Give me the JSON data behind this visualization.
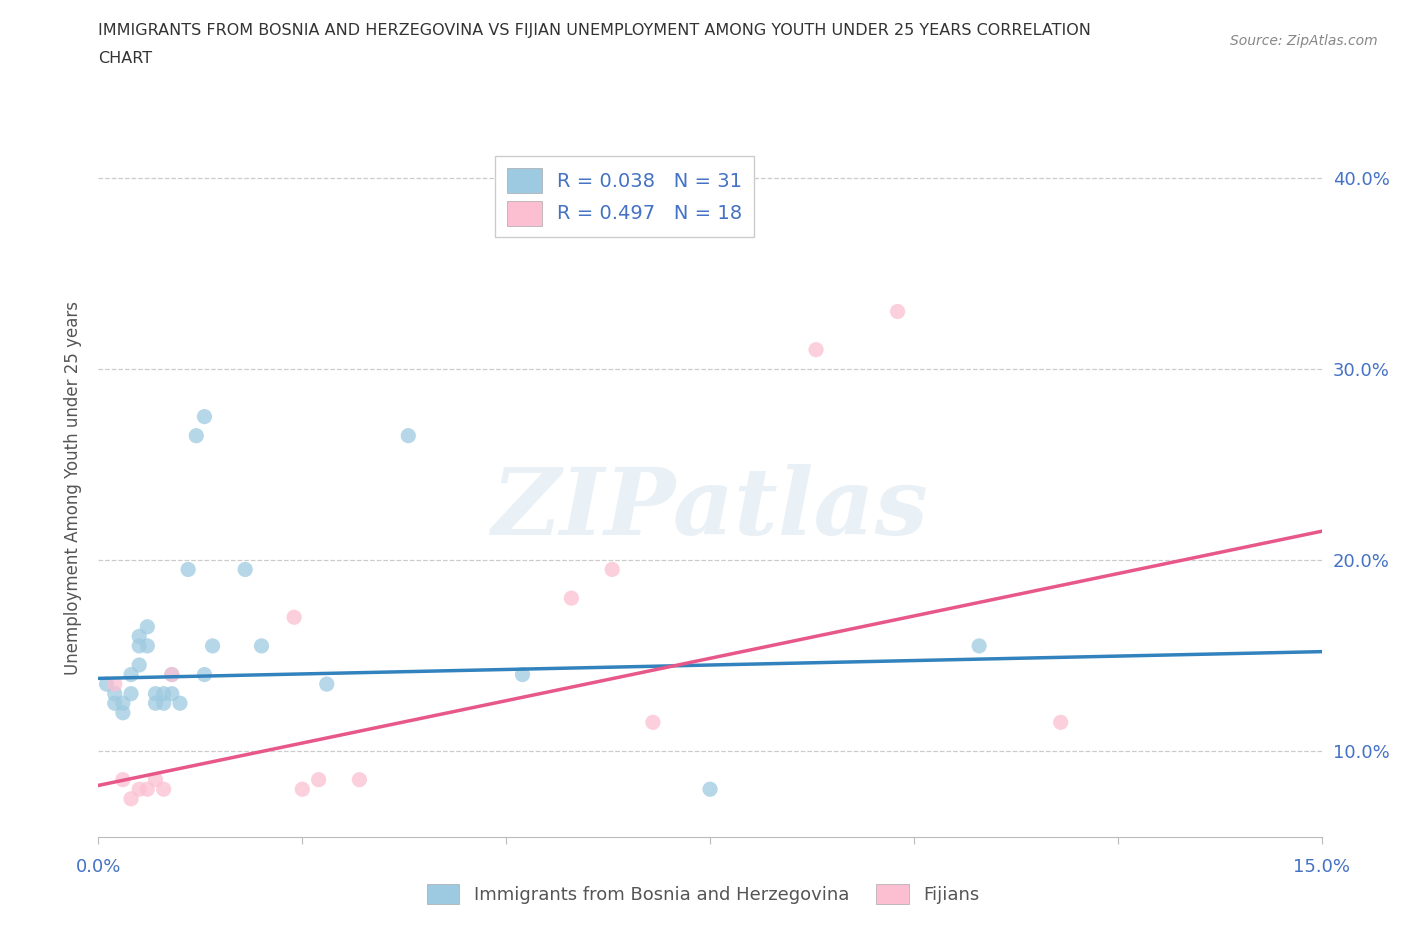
{
  "title_line1": "IMMIGRANTS FROM BOSNIA AND HERZEGOVINA VS FIJIAN UNEMPLOYMENT AMONG YOUTH UNDER 25 YEARS CORRELATION",
  "title_line2": "CHART",
  "source_text": "Source: ZipAtlas.com",
  "ylabel": "Unemployment Among Youth under 25 years",
  "xlim": [
    0.0,
    0.15
  ],
  "ylim": [
    0.055,
    0.42
  ],
  "x_ticks": [
    0.0,
    0.025,
    0.05,
    0.075,
    0.1,
    0.125,
    0.15
  ],
  "y_ticks": [
    0.1,
    0.2,
    0.3,
    0.4
  ],
  "y_tick_labels": [
    "10.0%",
    "20.0%",
    "30.0%",
    "40.0%"
  ],
  "color_blue": "#9ecae1",
  "color_pink": "#fcbfd2",
  "color_line_blue": "#3182bd",
  "color_line_pink": "#e8578a",
  "watermark_text": "ZIPatlas",
  "blue_scatter_x": [
    0.001,
    0.002,
    0.002,
    0.003,
    0.003,
    0.004,
    0.004,
    0.005,
    0.005,
    0.005,
    0.006,
    0.006,
    0.007,
    0.007,
    0.008,
    0.008,
    0.009,
    0.009,
    0.01,
    0.011,
    0.012,
    0.013,
    0.013,
    0.014,
    0.018,
    0.02,
    0.028,
    0.038,
    0.052,
    0.075,
    0.108
  ],
  "blue_scatter_y": [
    0.135,
    0.13,
    0.125,
    0.12,
    0.125,
    0.14,
    0.13,
    0.145,
    0.155,
    0.16,
    0.155,
    0.165,
    0.125,
    0.13,
    0.125,
    0.13,
    0.13,
    0.14,
    0.125,
    0.195,
    0.265,
    0.275,
    0.14,
    0.155,
    0.195,
    0.155,
    0.135,
    0.265,
    0.14,
    0.08,
    0.155
  ],
  "pink_scatter_x": [
    0.002,
    0.003,
    0.004,
    0.005,
    0.006,
    0.007,
    0.008,
    0.009,
    0.024,
    0.025,
    0.027,
    0.032,
    0.058,
    0.063,
    0.068,
    0.088,
    0.098,
    0.118
  ],
  "pink_scatter_y": [
    0.135,
    0.085,
    0.075,
    0.08,
    0.08,
    0.085,
    0.08,
    0.14,
    0.17,
    0.08,
    0.085,
    0.085,
    0.18,
    0.195,
    0.115,
    0.31,
    0.33,
    0.115
  ],
  "blue_trendline_x": [
    0.0,
    0.15
  ],
  "blue_trendline_y": [
    0.138,
    0.152
  ],
  "pink_trendline_x": [
    0.0,
    0.15
  ],
  "pink_trendline_y": [
    0.082,
    0.215
  ]
}
